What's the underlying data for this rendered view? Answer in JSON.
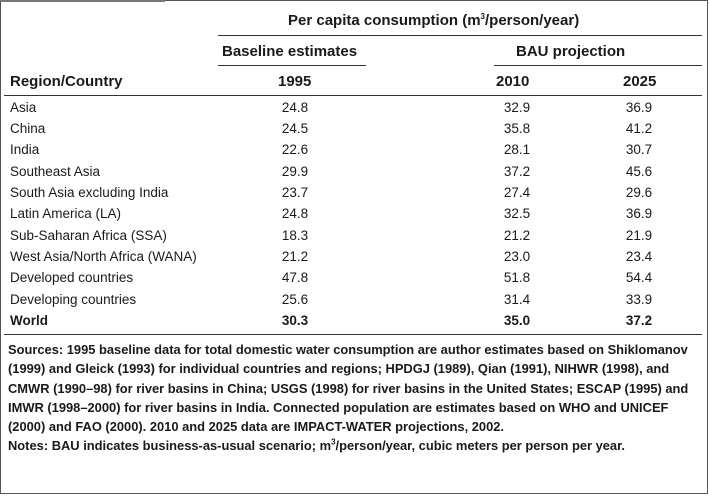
{
  "header": {
    "group_title_pre": "Per capita consumption (m",
    "group_title_sup": "3",
    "group_title_post": "/person/year)",
    "baseline_label": "Baseline estimates",
    "bau_label": "BAU projection",
    "row_header": "Region/Country",
    "col_1995": "1995",
    "col_2010": "2010",
    "col_2025": "2025"
  },
  "rows": [
    {
      "region": "Asia",
      "y1995": "24.8",
      "y2010": "32.9",
      "y2025": "36.9"
    },
    {
      "region": "China",
      "y1995": "24.5",
      "y2010": "35.8",
      "y2025": "41.2"
    },
    {
      "region": "India",
      "y1995": "22.6",
      "y2010": "28.1",
      "y2025": "30.7"
    },
    {
      "region": "Southeast Asia",
      "y1995": "29.9",
      "y2010": "37.2",
      "y2025": "45.6"
    },
    {
      "region": "South Asia excluding India",
      "y1995": "23.7",
      "y2010": "27.4",
      "y2025": "29.6"
    },
    {
      "region": "Latin America (LA)",
      "y1995": "24.8",
      "y2010": "32.5",
      "y2025": "36.9"
    },
    {
      "region": "Sub-Saharan Africa (SSA)",
      "y1995": "18.3",
      "y2010": "21.2",
      "y2025": "21.9"
    },
    {
      "region": "West Asia/North Africa (WANA)",
      "y1995": "21.2",
      "y2010": "23.0",
      "y2025": "23.4"
    },
    {
      "region": "Developed countries",
      "y1995": "47.8",
      "y2010": "51.8",
      "y2025": "54.4"
    },
    {
      "region": "Developing countries",
      "y1995": "25.6",
      "y2010": "31.4",
      "y2025": "33.9"
    }
  ],
  "total_row": {
    "region": "World",
    "y1995": "30.3",
    "y2010": "35.0",
    "y2025": "37.2"
  },
  "notes": {
    "sources": "Sources: 1995 baseline data for total domestic water consumption are author estimates based on Shiklomanov (1999) and Gleick (1993) for individual countries and regions; HPDGJ (1989), Qian (1991), NIHWR (1998), and CMWR (1990–98) for river basins in China; USGS (1998) for river basins in the United States; ESCAP (1995) and IMWR (1998–2000) for river basins in India. Connected population are estimates based on WHO and UNICEF (2000) and FAO (2000). 2010 and 2025 data are IMPACT-WATER projections, 2002.",
    "notes_pre": "Notes: BAU indicates business-as-usual scenario; m",
    "notes_sup": "3",
    "notes_post": "/person/year, cubic meters per person per year."
  }
}
